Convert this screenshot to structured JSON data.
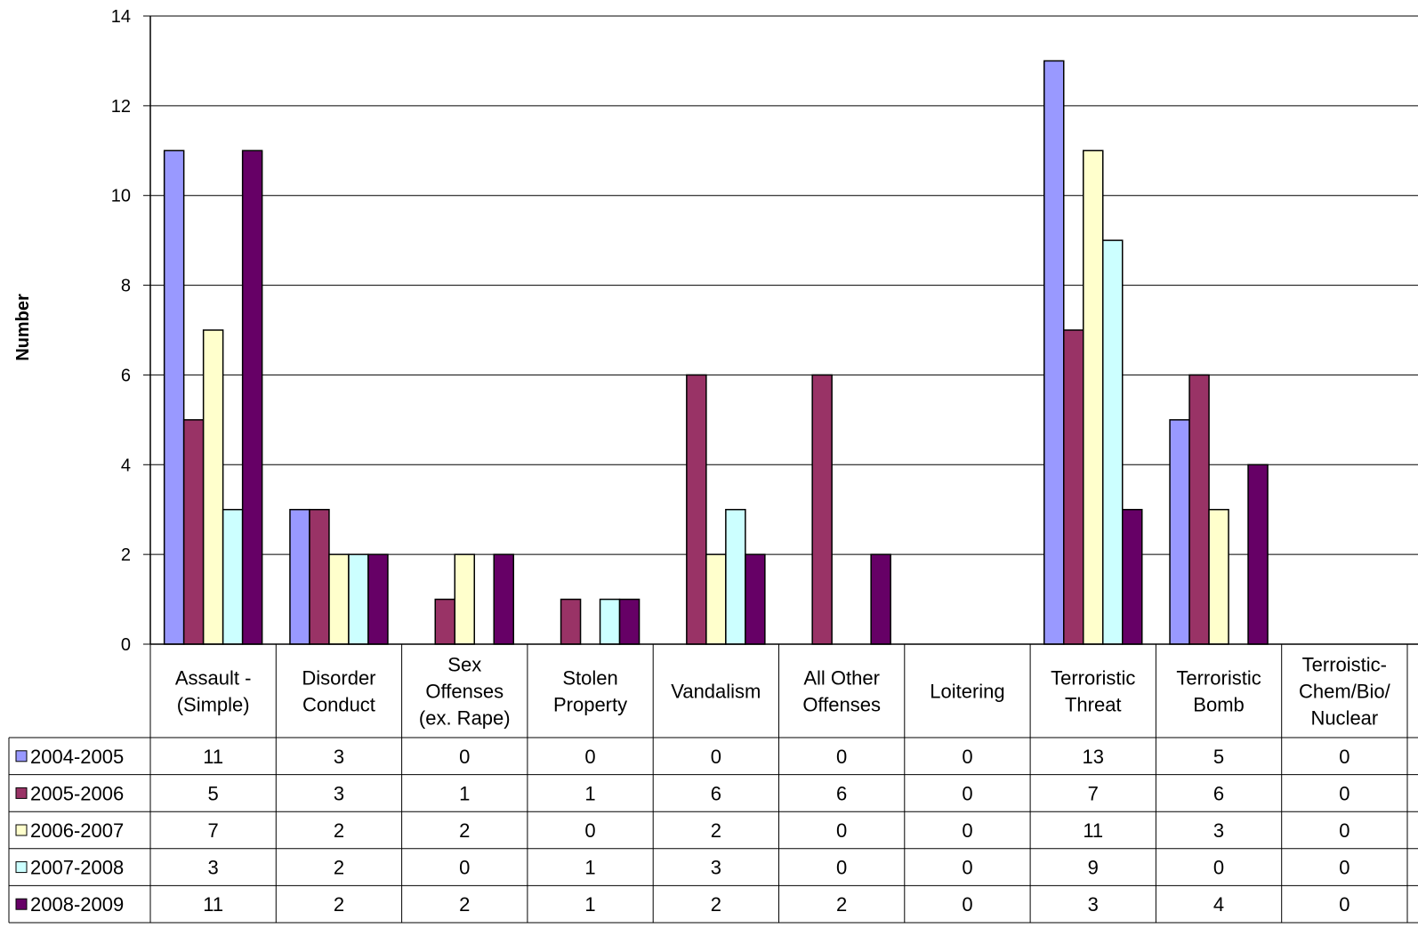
{
  "chart_data": {
    "type": "bar",
    "title": "",
    "xlabel": "",
    "ylabel": "Number",
    "ylim": [
      0,
      14
    ],
    "yticks": [
      0,
      2,
      4,
      6,
      8,
      10,
      12,
      14
    ],
    "grid": true,
    "legend": "data-table-left",
    "categories": [
      [
        "Assault -",
        "(Simple)"
      ],
      [
        "Disorder",
        "Conduct"
      ],
      [
        "Sex",
        "Offenses",
        "(ex. Rape)"
      ],
      [
        "Stolen",
        "Property"
      ],
      [
        "Vandalism"
      ],
      [
        "All Other",
        "Offenses"
      ],
      [
        "Loitering"
      ],
      [
        "Terroristic",
        "Threat"
      ],
      [
        "Terroristic",
        "Bomb"
      ],
      [
        "Terroistic-",
        "Chem/Bio/",
        "Nuclear"
      ]
    ],
    "series": [
      {
        "name": "2004-2005",
        "color": "#9999ff",
        "values": [
          11,
          3,
          0,
          0,
          0,
          0,
          0,
          13,
          5,
          0
        ]
      },
      {
        "name": "2005-2006",
        "color": "#993366",
        "values": [
          5,
          3,
          1,
          1,
          6,
          6,
          0,
          7,
          6,
          0
        ]
      },
      {
        "name": "2006-2007",
        "color": "#ffffcc",
        "values": [
          7,
          2,
          2,
          0,
          2,
          0,
          0,
          11,
          3,
          0
        ]
      },
      {
        "name": "2007-2008",
        "color": "#ccffff",
        "values": [
          3,
          2,
          0,
          1,
          3,
          0,
          0,
          9,
          0,
          0
        ]
      },
      {
        "name": "2008-2009",
        "color": "#660066",
        "values": [
          11,
          2,
          2,
          1,
          2,
          2,
          0,
          3,
          4,
          0
        ]
      }
    ]
  }
}
